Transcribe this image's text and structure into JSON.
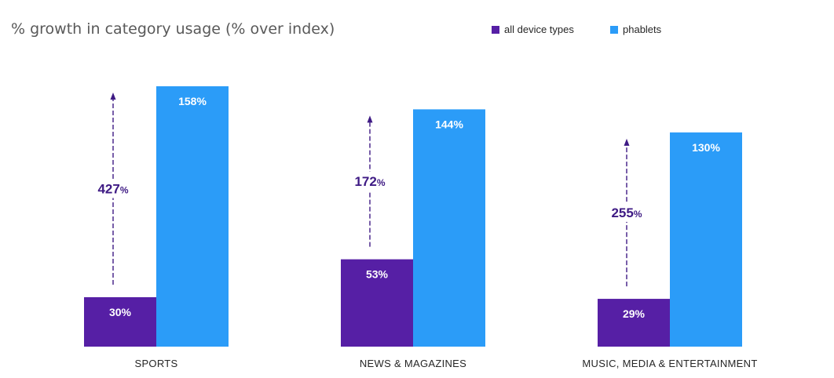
{
  "title": "% growth in category usage (% over index)",
  "legend": {
    "all_device_types": "all device types",
    "phablets": "phablets"
  },
  "colors": {
    "all_device_types": "#561fa5",
    "phablets": "#2b9cf8",
    "growth_text": "#3e1a84"
  },
  "chart_data": {
    "type": "bar",
    "title": "% growth in category usage (% over index)",
    "categories": [
      "SPORTS",
      "NEWS &  MAGAZINES",
      "MUSIC, MEDIA & ENTERTAINMENT"
    ],
    "series": [
      {
        "name": "all device types",
        "values": [
          30,
          53,
          29
        ],
        "labels": [
          "30%",
          "53%",
          "29%"
        ]
      },
      {
        "name": "phablets",
        "values": [
          158,
          144,
          130
        ],
        "labels": [
          "158%",
          "144%",
          "130%"
        ]
      }
    ],
    "growth_annotations": [
      {
        "value": "427",
        "unit": "%"
      },
      {
        "value": "172",
        "unit": "%"
      },
      {
        "value": "255",
        "unit": "%"
      }
    ],
    "ylim": [
      0,
      160
    ],
    "grid": false,
    "legend_position": "top-right",
    "xlabel": "",
    "ylabel": ""
  }
}
